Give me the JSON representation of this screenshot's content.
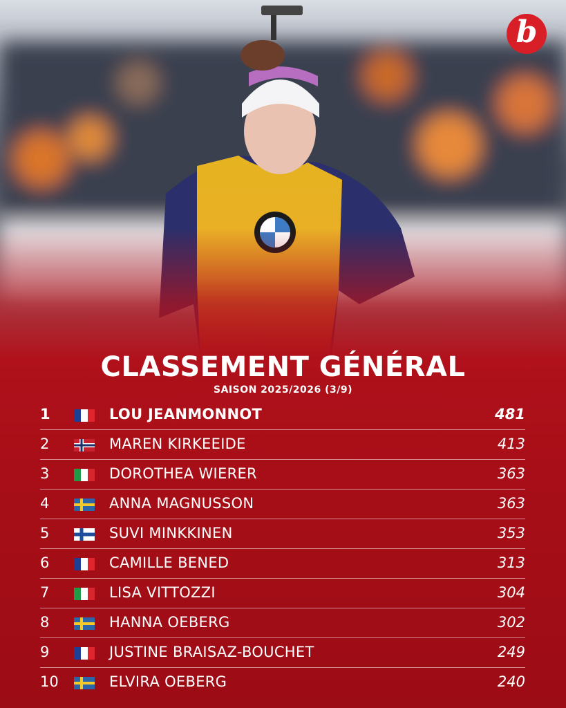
{
  "logo": "b",
  "header": {
    "title": "CLASSEMENT GÉNÉRAL",
    "subtitle": "SAISON 2025/2026 (3/9)"
  },
  "table": {
    "rows": [
      [
        1,
        "LOU JEANMONNOT",
        481
      ],
      [
        2,
        "MAREN KIRKEEIDE",
        413
      ],
      [
        3,
        "DOROTHEA WIERER",
        363
      ],
      [
        4,
        "ANNA MAGNUSSON",
        363
      ],
      [
        5,
        "SUVI MINKKINEN",
        353
      ],
      [
        6,
        "CAMILLE BENED",
        313
      ],
      [
        7,
        "LISA VITTOZZI",
        304
      ],
      [
        8,
        "HANNA OEBERG",
        302
      ],
      [
        9,
        "JUSTINE BRAISAZ-BOUCHET",
        249
      ],
      [
        10,
        "ELVIRA OEBERG",
        240
      ]
    ]
  }
}
